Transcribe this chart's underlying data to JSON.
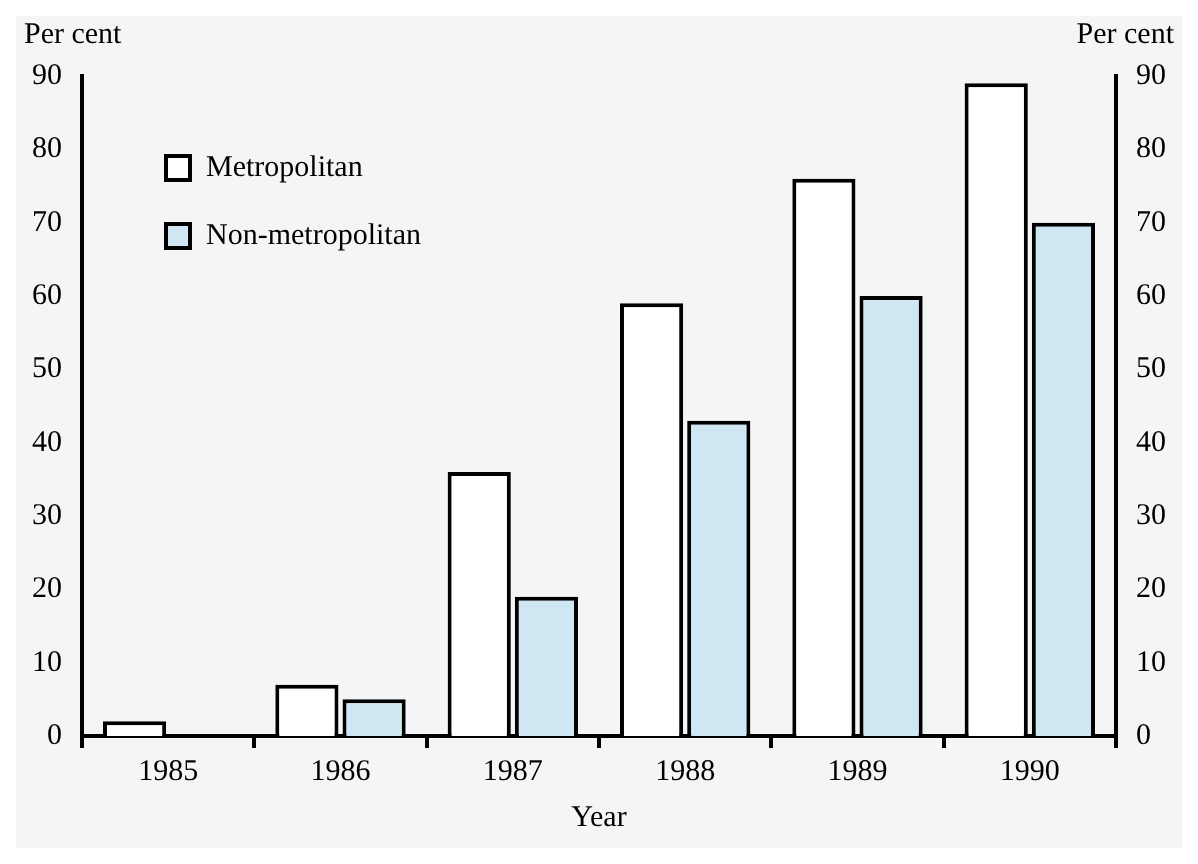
{
  "chart_data": {
    "type": "bar",
    "categories": [
      "1985",
      "1986",
      "1987",
      "1988",
      "1989",
      "1990"
    ],
    "series": [
      {
        "name": "Metropolitan",
        "color": "#ffffff",
        "values": [
          2,
          7,
          36,
          59,
          76,
          89
        ]
      },
      {
        "name": "Non-metropolitan",
        "color": "#cfe6f3",
        "values": [
          0,
          5,
          19,
          43,
          60,
          70
        ]
      }
    ],
    "xlabel": "Year",
    "ylabel": "Per cent",
    "y2label": "Per cent",
    "ylim": [
      0,
      90
    ],
    "yticks": [
      0,
      10,
      20,
      30,
      40,
      50,
      60,
      70,
      80,
      90
    ],
    "y2lim": [
      0,
      90
    ],
    "y2ticks": [
      0,
      10,
      20,
      30,
      40,
      50,
      60,
      70,
      80,
      90
    ],
    "grid": false,
    "legend": "top left"
  }
}
